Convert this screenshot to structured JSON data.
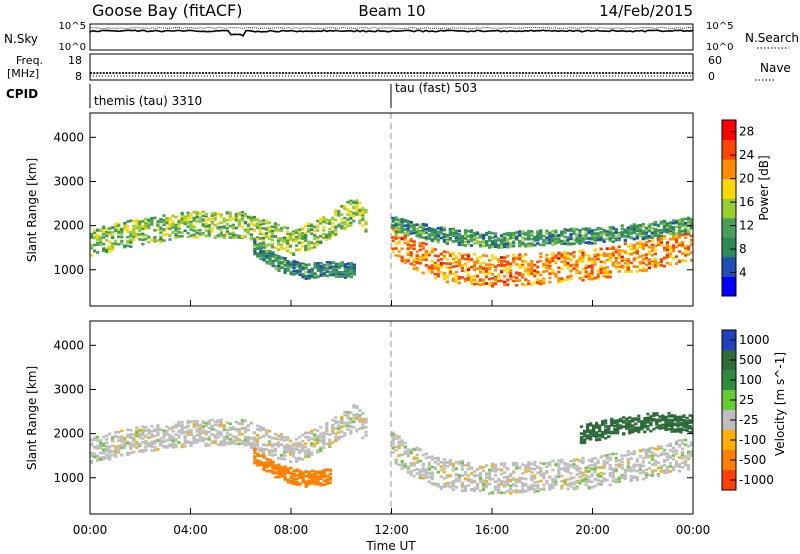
{
  "header": {
    "station": "Goose Bay (fitACF)",
    "beam": "Beam 10",
    "date": "14/Feb/2015"
  },
  "noise_panel": {
    "left_label": "N.Sky",
    "left_ticks": [
      "10^5",
      "10^0"
    ],
    "right_ticks": [
      "10^5",
      "10^0"
    ],
    "right_label": "N.Search"
  },
  "freq_panel": {
    "left_label_line1": "Freq.",
    "left_label_line2": "[MHz]",
    "left_ticks": [
      "18",
      "8"
    ],
    "right_ticks": [
      "60",
      "0"
    ],
    "right_label": "Nave"
  },
  "cpid": {
    "label": "CPID",
    "segments": [
      {
        "name": "themis (tau) 3310",
        "start_hour": 0
      },
      {
        "name": "tau (fast) 503",
        "start_hour": 12
      }
    ]
  },
  "colors": {
    "power": [
      "#0000ff",
      "#1f4fb4",
      "#2e8b57",
      "#46a05a",
      "#9acd32",
      "#ffd700",
      "#ff8c00",
      "#ff4500",
      "#ff0000"
    ],
    "velocity": [
      "#2040c0",
      "#2e6b3a",
      "#2f8c3c",
      "#66cc33",
      "#bebebe",
      "#ffb000",
      "#ff8000",
      "#ff4000",
      "#ff0000"
    ],
    "ground_scatter": "#bebebe"
  },
  "chart_data": [
    {
      "type": "heatmap",
      "title": "",
      "xlabel": "",
      "ylabel": "Slant Range [km]",
      "xlim": [
        0,
        24
      ],
      "ylim": [
        180,
        4550
      ],
      "yticks": [
        "1000",
        "2000",
        "3000",
        "4000"
      ],
      "colorbar_label": "Power [dB]",
      "colorbar_ticks": [
        "4",
        "8",
        "12",
        "16",
        "20",
        "24",
        "28"
      ],
      "colorbar_range": [
        0,
        30
      ],
      "bands": [
        {
          "x": [
            0.0,
            2.0,
            4.0,
            6.0,
            7.0,
            8.0,
            9.0,
            10.0,
            10.5,
            11.0
          ],
          "center": [
            1650,
            1900,
            2050,
            2050,
            1850,
            1650,
            1850,
            2200,
            2400,
            2100
          ],
          "width": 420,
          "power": 14
        },
        {
          "x": [
            12.0,
            13.0,
            14.0,
            16.0,
            18.0,
            20.0,
            22.0,
            24.0
          ],
          "center": [
            1700,
            1350,
            1100,
            1000,
            1050,
            1150,
            1350,
            1600
          ],
          "width": 500,
          "power": 22
        },
        {
          "x": [
            12.0,
            14.0,
            16.0,
            18.0,
            20.0,
            22.0,
            24.0
          ],
          "center": [
            2050,
            1800,
            1700,
            1750,
            1800,
            1900,
            2050
          ],
          "width": 250,
          "power": 10
        },
        {
          "x": [
            6.5,
            7.5,
            8.5,
            9.5,
            10.5
          ],
          "center": [
            1500,
            1150,
            1000,
            1050,
            1000
          ],
          "width": 250,
          "power": 9
        }
      ]
    },
    {
      "type": "heatmap",
      "title": "",
      "xlabel": "Time UT",
      "ylabel": "Slant Range [km]",
      "xlim": [
        0,
        24
      ],
      "ylim": [
        180,
        4550
      ],
      "yticks": [
        "1000",
        "2000",
        "3000",
        "4000"
      ],
      "xticks": [
        "00:00",
        "04:00",
        "08:00",
        "12:00",
        "16:00",
        "20:00",
        "00:00"
      ],
      "colorbar_label": "Velocity [m s^-1]",
      "colorbar_ticks": [
        "1000",
        "500",
        "100",
        "25",
        "-25",
        "-100",
        "-500",
        "-1000"
      ],
      "colorbar_range": [
        -1200,
        1200
      ],
      "bands": [
        {
          "x": [
            0.0,
            2.0,
            4.0,
            6.0,
            7.0,
            8.0,
            9.0,
            10.0,
            10.5,
            11.0
          ],
          "center": [
            1650,
            1900,
            2050,
            2050,
            1850,
            1650,
            1850,
            2200,
            2400,
            2100
          ],
          "width": 420,
          "velocity": 0
        },
        {
          "x": [
            12.0,
            13.0,
            14.0,
            16.0,
            18.0,
            20.0,
            22.0,
            24.0
          ],
          "center": [
            1700,
            1350,
            1100,
            1000,
            1050,
            1150,
            1350,
            1600
          ],
          "width": 500,
          "velocity": 0
        },
        {
          "x": [
            6.5,
            7.5,
            8.5,
            9.5
          ],
          "center": [
            1500,
            1150,
            1000,
            1050
          ],
          "width": 250,
          "velocity": -150
        },
        {
          "x": [
            19.5,
            21.0,
            22.5,
            24.0
          ],
          "center": [
            2000,
            2200,
            2300,
            2250
          ],
          "width": 300,
          "velocity": 150
        }
      ]
    }
  ]
}
